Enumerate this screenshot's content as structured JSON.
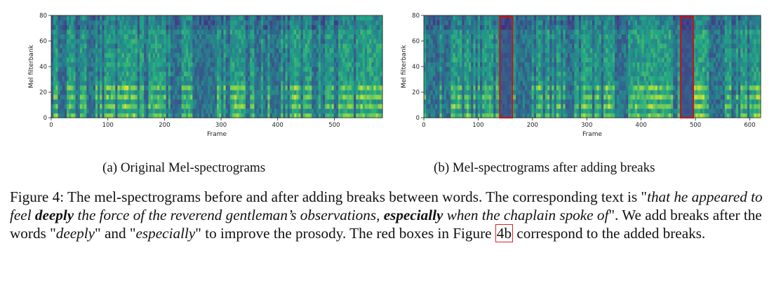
{
  "panels": [
    {
      "id": "a",
      "subcaption": "(a) Original Mel-spectrograms",
      "xlabel": "Frame",
      "ylabel": "Mel filterbank",
      "xlim": [
        0,
        585
      ],
      "ylim": [
        0,
        80
      ],
      "xticks": [
        0,
        100,
        200,
        300,
        400,
        500
      ],
      "yticks": [
        0,
        20,
        40,
        60,
        80
      ],
      "boxes": []
    },
    {
      "id": "b",
      "subcaption": "(b) Mel-spectrograms after adding breaks",
      "xlabel": "Frame",
      "ylabel": "Mel filterbank",
      "xlim": [
        0,
        620
      ],
      "ylim": [
        0,
        80
      ],
      "xticks": [
        0,
        100,
        200,
        300,
        400,
        500,
        600
      ],
      "yticks": [
        0,
        20,
        40,
        60,
        80
      ],
      "boxes": [
        [
          140,
          163
        ],
        [
          473,
          496
        ]
      ]
    }
  ],
  "colors": {
    "box": "#c0161f",
    "ref_box": "#d8242b"
  },
  "caption": {
    "label": "Figure 4:",
    "s1": " The mel-spectrograms before and after adding breaks between words. The corresponding text is \"",
    "q1": "that he appeared to feel ",
    "q1b": "deeply",
    "q2": " the force of the reverend gentleman’s observations, ",
    "q2b": "especially",
    "q3": " when the chaplain spoke of",
    "s2": "\". We add breaks after the words \"",
    "w1": "deeply",
    "s3": "\" and \"",
    "w2": "especially",
    "s4": "\" to improve the prosody. The red boxes in Figure ",
    "ref": "4b",
    "s5": " correspond to the added breaks."
  }
}
